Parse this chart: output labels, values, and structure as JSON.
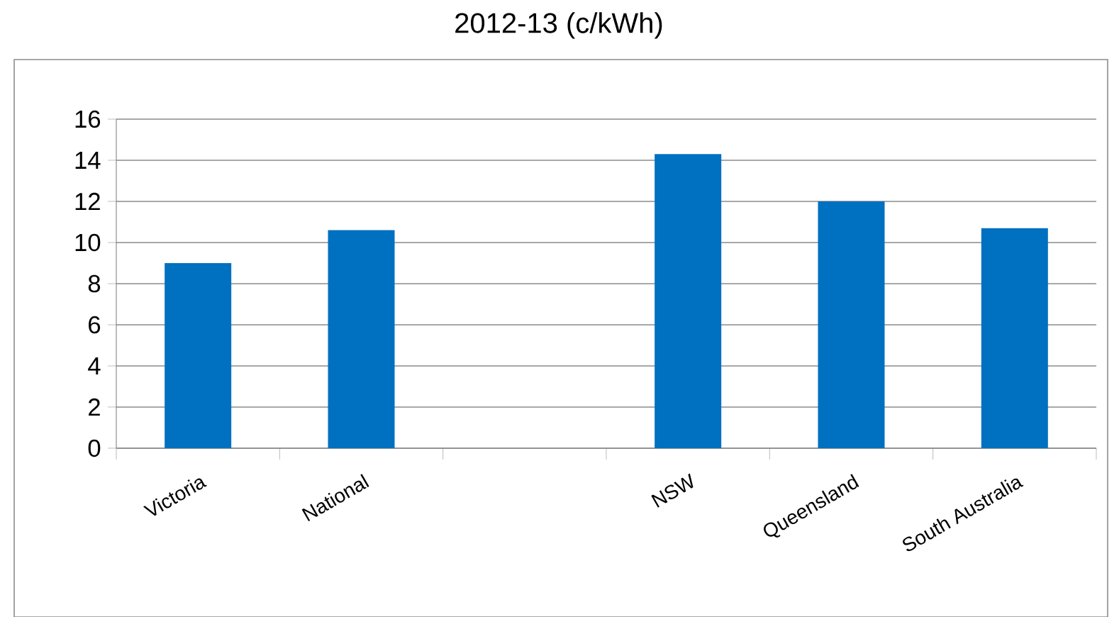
{
  "chart_data": {
    "type": "bar",
    "title": "2012-13 (c/kWh)",
    "categories": [
      "Victoria",
      "National",
      null,
      "NSW",
      "Queensland",
      "South Australia"
    ],
    "values": [
      9.0,
      10.6,
      null,
      14.3,
      12.0,
      10.7
    ],
    "color": "#0070c0",
    "ylim": [
      0,
      16
    ],
    "yticks": [
      0,
      2,
      4,
      6,
      8,
      10,
      12,
      14,
      16
    ],
    "grid": "y"
  }
}
